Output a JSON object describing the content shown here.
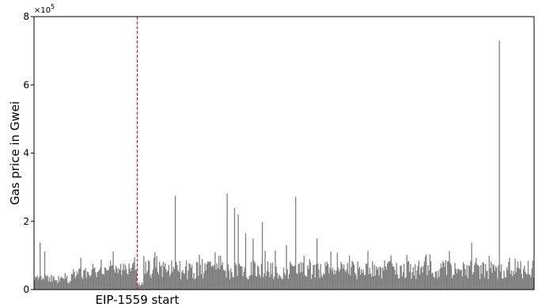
{
  "chart_data": {
    "type": "bar",
    "ylabel": "Gas price in  Gwei",
    "y_offset_label": "×10",
    "y_offset_exponent": "5",
    "ylim": [
      0,
      800000
    ],
    "yticks": [
      0,
      200000,
      400000,
      600000,
      800000
    ],
    "ytick_labels": [
      "0",
      "2",
      "4",
      "6",
      "8"
    ],
    "x_count": 540,
    "grid": false,
    "legend": "none",
    "bar_color": "#808080",
    "annotation": {
      "label": "EIP-1559 start",
      "x_index": 111,
      "line_color": "#d62728",
      "line_style": "dashed"
    },
    "peaks": [
      {
        "x": 6,
        "value": 138000
      },
      {
        "x": 11,
        "value": 112000
      },
      {
        "x": 33,
        "value": 48000
      },
      {
        "x": 85,
        "value": 112000
      },
      {
        "x": 129,
        "value": 93000
      },
      {
        "x": 152,
        "value": 275000
      },
      {
        "x": 178,
        "value": 102000
      },
      {
        "x": 195,
        "value": 110000
      },
      {
        "x": 208,
        "value": 282000
      },
      {
        "x": 216,
        "value": 240000
      },
      {
        "x": 220,
        "value": 220000
      },
      {
        "x": 228,
        "value": 165000
      },
      {
        "x": 236,
        "value": 150000
      },
      {
        "x": 246,
        "value": 198000
      },
      {
        "x": 260,
        "value": 115000
      },
      {
        "x": 272,
        "value": 130000
      },
      {
        "x": 282,
        "value": 272000
      },
      {
        "x": 291,
        "value": 100000
      },
      {
        "x": 305,
        "value": 150000
      },
      {
        "x": 320,
        "value": 112000
      },
      {
        "x": 340,
        "value": 100000
      },
      {
        "x": 360,
        "value": 113000
      },
      {
        "x": 385,
        "value": 100000
      },
      {
        "x": 423,
        "value": 102000
      },
      {
        "x": 448,
        "value": 113000
      },
      {
        "x": 472,
        "value": 137000
      },
      {
        "x": 502,
        "value": 730000
      },
      {
        "x": 528,
        "value": 60000
      }
    ]
  }
}
